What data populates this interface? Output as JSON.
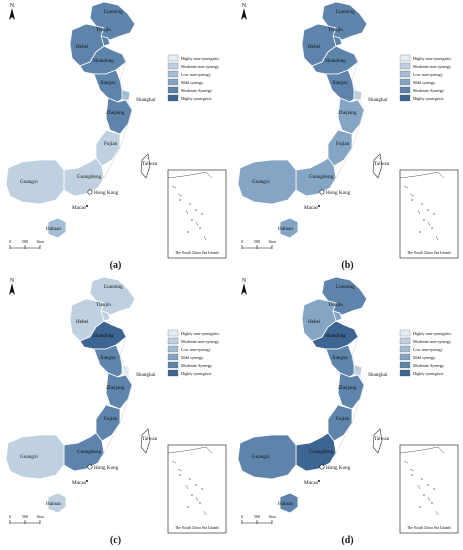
{
  "shared": {
    "north_label": "N",
    "scale_ticks": [
      "0",
      "500",
      "1km"
    ],
    "inset_caption": "The South China Sea Islands",
    "places": {
      "liaoning": "Liaoning",
      "tianjin": "Tianjin",
      "hebei": "Hebei",
      "shandong": "Shandong",
      "jiangsu": "Jiangsu",
      "shanghai": "Shanghai",
      "zhejiang": "Zhejiang",
      "fujian": "Fujian",
      "taiwan": "Taiwan",
      "guangdong": "Guangdong",
      "guangxi": "Guangxi",
      "hongkong": "Hong Kong",
      "macao": "Macao",
      "hainan": "Hainan"
    },
    "legend": [
      {
        "label": "Highly non-synergistic",
        "color": "#e6eef5"
      },
      {
        "label": "Moderate non-synergy",
        "color": "#bfd1e1"
      },
      {
        "label": "Low non-synergy",
        "color": "#a3bdd5"
      },
      {
        "label": "Mild synergy",
        "color": "#84a5c4"
      },
      {
        "label": "Moderate Synergy",
        "color": "#5e84ab"
      },
      {
        "label": "Highly synergistic",
        "color": "#3c6591"
      }
    ]
  },
  "panels": [
    {
      "label": "(a)",
      "fills": {
        "liaoning": "#5e84ab",
        "hebei": "#5e84ab",
        "tianjin": "#5e84ab",
        "shandong": "#5e84ab",
        "jiangsu": "#5e84ab",
        "shanghai": "#a3bdd5",
        "zhejiang": "#5e84ab",
        "fujian": "#bfd1e1",
        "guangdong": "#bfd1e1",
        "guangxi": "#bfd1e1",
        "hainan": "#a3bdd5"
      }
    },
    {
      "label": "(b)",
      "fills": {
        "liaoning": "#5e84ab",
        "hebei": "#5e84ab",
        "tianjin": "#5e84ab",
        "shandong": "#5e84ab",
        "jiangsu": "#5e84ab",
        "shanghai": "#bfd1e1",
        "zhejiang": "#84a5c4",
        "fujian": "#84a5c4",
        "guangdong": "#84a5c4",
        "guangxi": "#84a5c4",
        "hainan": "#84a5c4"
      }
    },
    {
      "label": "(c)",
      "fills": {
        "liaoning": "#bfd1e1",
        "hebei": "#bfd1e1",
        "tianjin": "#bfd1e1",
        "shandong": "#3c6591",
        "jiangsu": "#5e84ab",
        "shanghai": "#e6eef5",
        "zhejiang": "#5e84ab",
        "fujian": "#5e84ab",
        "guangdong": "#5e84ab",
        "guangxi": "#bfd1e1",
        "hainan": "#bfd1e1"
      }
    },
    {
      "label": "(d)",
      "fills": {
        "liaoning": "#5e84ab",
        "hebei": "#84a5c4",
        "tianjin": "#84a5c4",
        "shandong": "#3c6591",
        "jiangsu": "#5e84ab",
        "shanghai": "#bfd1e1",
        "zhejiang": "#5e84ab",
        "fujian": "#5e84ab",
        "guangdong": "#3c6591",
        "guangxi": "#5e84ab",
        "hainan": "#5e84ab"
      }
    }
  ]
}
